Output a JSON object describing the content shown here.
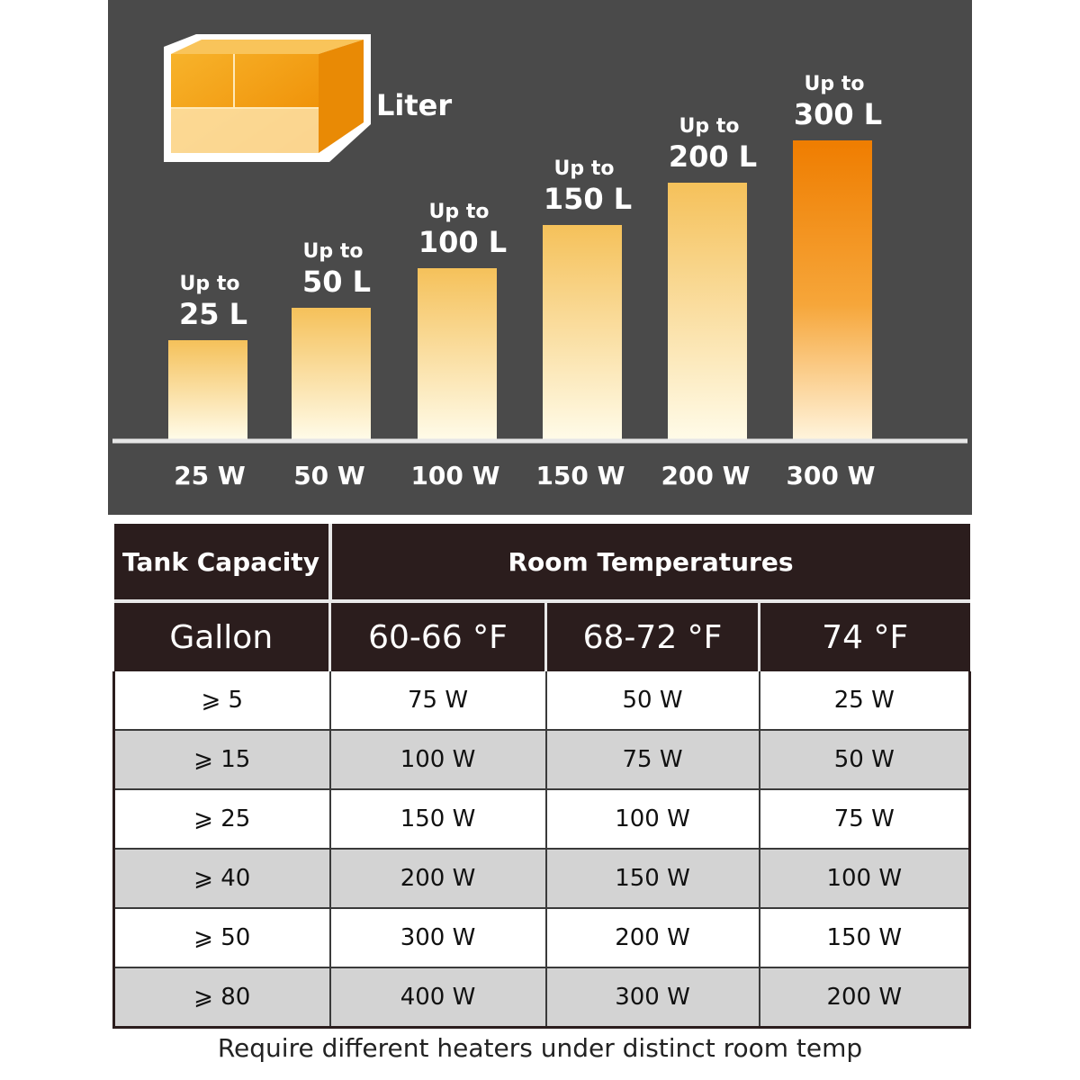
{
  "chart_data": {
    "type": "bar",
    "title": "",
    "unit_label": "Liter",
    "categories": [
      "25 W",
      "50 W",
      "100 W",
      "150 W",
      "200 W",
      "300 W"
    ],
    "values": [
      25,
      50,
      100,
      150,
      200,
      300
    ],
    "bar_prefix": "Up to",
    "bar_value_labels": [
      "25 L",
      "50 L",
      "100 L",
      "150 L",
      "200 L",
      "300 L"
    ],
    "xlabel": "",
    "ylabel": "",
    "grid": false,
    "colors": {
      "panel": "#4a4a4a",
      "bar_top": "#f5c15a",
      "bar_bottom": "#fffbe8",
      "highlight_top": "#ef7d00",
      "highlight_mid": "#f6a63a",
      "baseline": "#e6e6e6"
    }
  },
  "table": {
    "tank_capacity_label": "Tank Capacity",
    "room_temperatures_label": "Room Temperatures",
    "gallon_label": "Gallon",
    "temp_columns": [
      "60-66 °F",
      "68-72 °F",
      "74 °F"
    ],
    "rows": [
      {
        "gallon": "⩾ 5",
        "cells": [
          "75 W",
          "50 W",
          "25 W"
        ]
      },
      {
        "gallon": "⩾ 15",
        "cells": [
          "100 W",
          "75 W",
          "50 W"
        ]
      },
      {
        "gallon": "⩾ 25",
        "cells": [
          "150 W",
          "100 W",
          "75 W"
        ]
      },
      {
        "gallon": "⩾ 40",
        "cells": [
          "200 W",
          "150 W",
          "100 W"
        ]
      },
      {
        "gallon": "⩾ 50",
        "cells": [
          "300 W",
          "200 W",
          "150 W"
        ]
      },
      {
        "gallon": "⩾ 80",
        "cells": [
          "400 W",
          "300 W",
          "200 W"
        ]
      }
    ]
  },
  "footnote": "Require different heaters under distinct room temp"
}
